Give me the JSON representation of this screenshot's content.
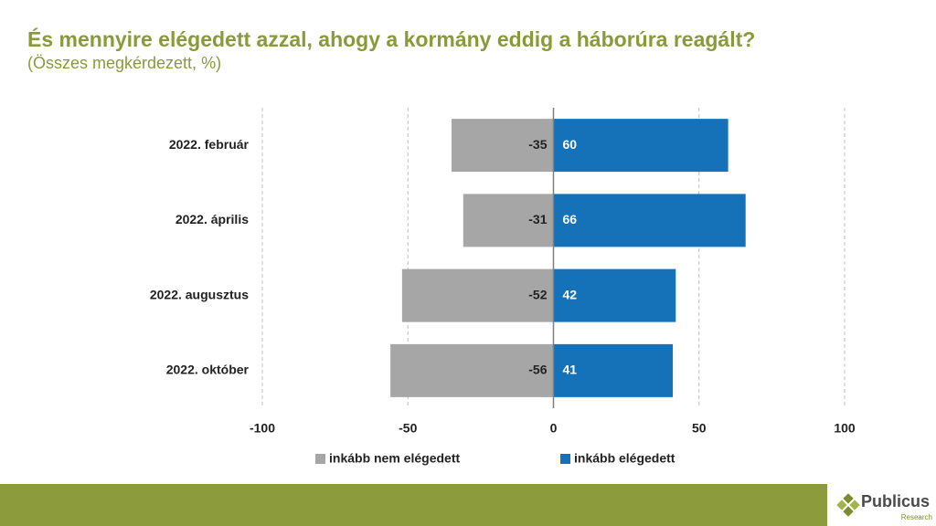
{
  "chart_data": {
    "type": "diverging-bar",
    "title": "És mennyire elégedett azzal, ahogy a kormány eddig a háborúra reagált?",
    "subtitle": "(Összes megkérdezett, %)",
    "categories": [
      "2022. február",
      "2022. április",
      "2022. augusztus",
      "2022. október"
    ],
    "series": [
      {
        "name": "inkább nem elégedett",
        "color": "#a6a6a6",
        "values": [
          -35,
          -31,
          -52,
          -56
        ]
      },
      {
        "name": "inkább elégedett",
        "color": "#1572b9",
        "values": [
          60,
          66,
          42,
          41
        ]
      }
    ],
    "xlim": [
      -100,
      100
    ],
    "xticks": [
      -100,
      -50,
      0,
      50,
      100
    ],
    "grid": true,
    "legend": "bottom"
  },
  "footer": {
    "logo": "Publicus",
    "logo_sub": "Research"
  }
}
